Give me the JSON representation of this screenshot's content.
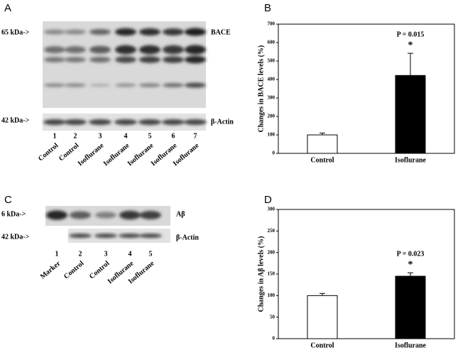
{
  "blots": [
    {
      "panel": "A",
      "markers": [
        "65 kDa->",
        "42 kDa->"
      ],
      "proteins": [
        "BACE",
        "β-Actin"
      ],
      "lanes": [
        "1",
        "2",
        "3",
        "4",
        "5",
        "6",
        "7"
      ],
      "lane_labels": [
        "Control",
        "Control",
        "Isoflurane",
        "Isoflurane",
        "Isoflurane",
        "Isoflurane",
        "Isoflurane"
      ]
    },
    {
      "panel": "C",
      "markers": [
        "6 kDa->",
        "42 kDa->"
      ],
      "proteins": [
        "Aβ",
        "β-Actin"
      ],
      "lanes": [
        "1",
        "2",
        "3",
        "4",
        "5"
      ],
      "lane_labels": [
        "Marker",
        "Control",
        "Control",
        "Isoflurane",
        "Isoflurane"
      ]
    }
  ],
  "chart_data": [
    {
      "type": "bar",
      "panel": "B",
      "y_label": "Changes in BACE levels (%)",
      "categories": [
        "Control",
        "Isoflurane"
      ],
      "values": [
        100,
        422
      ],
      "errors": [
        10,
        120
      ],
      "colors": [
        "#ffffff",
        "#000000"
      ],
      "p_label": "P = 0.015",
      "significance": "*",
      "ylim": [
        0,
        700
      ],
      "yticks": [
        0,
        100,
        200,
        300,
        400,
        500,
        600,
        700
      ]
    },
    {
      "type": "bar",
      "panel": "D",
      "y_label": "Changes in Aβ levels (%)",
      "categories": [
        "Control",
        "Isoflurane"
      ],
      "values": [
        100,
        145
      ],
      "errors": [
        5,
        8
      ],
      "colors": [
        "#ffffff",
        "#000000"
      ],
      "p_label": "P = 0.023",
      "significance": "*",
      "ylim": [
        0,
        300
      ],
      "yticks": [
        0,
        50,
        100,
        150,
        200,
        250,
        300
      ]
    }
  ]
}
